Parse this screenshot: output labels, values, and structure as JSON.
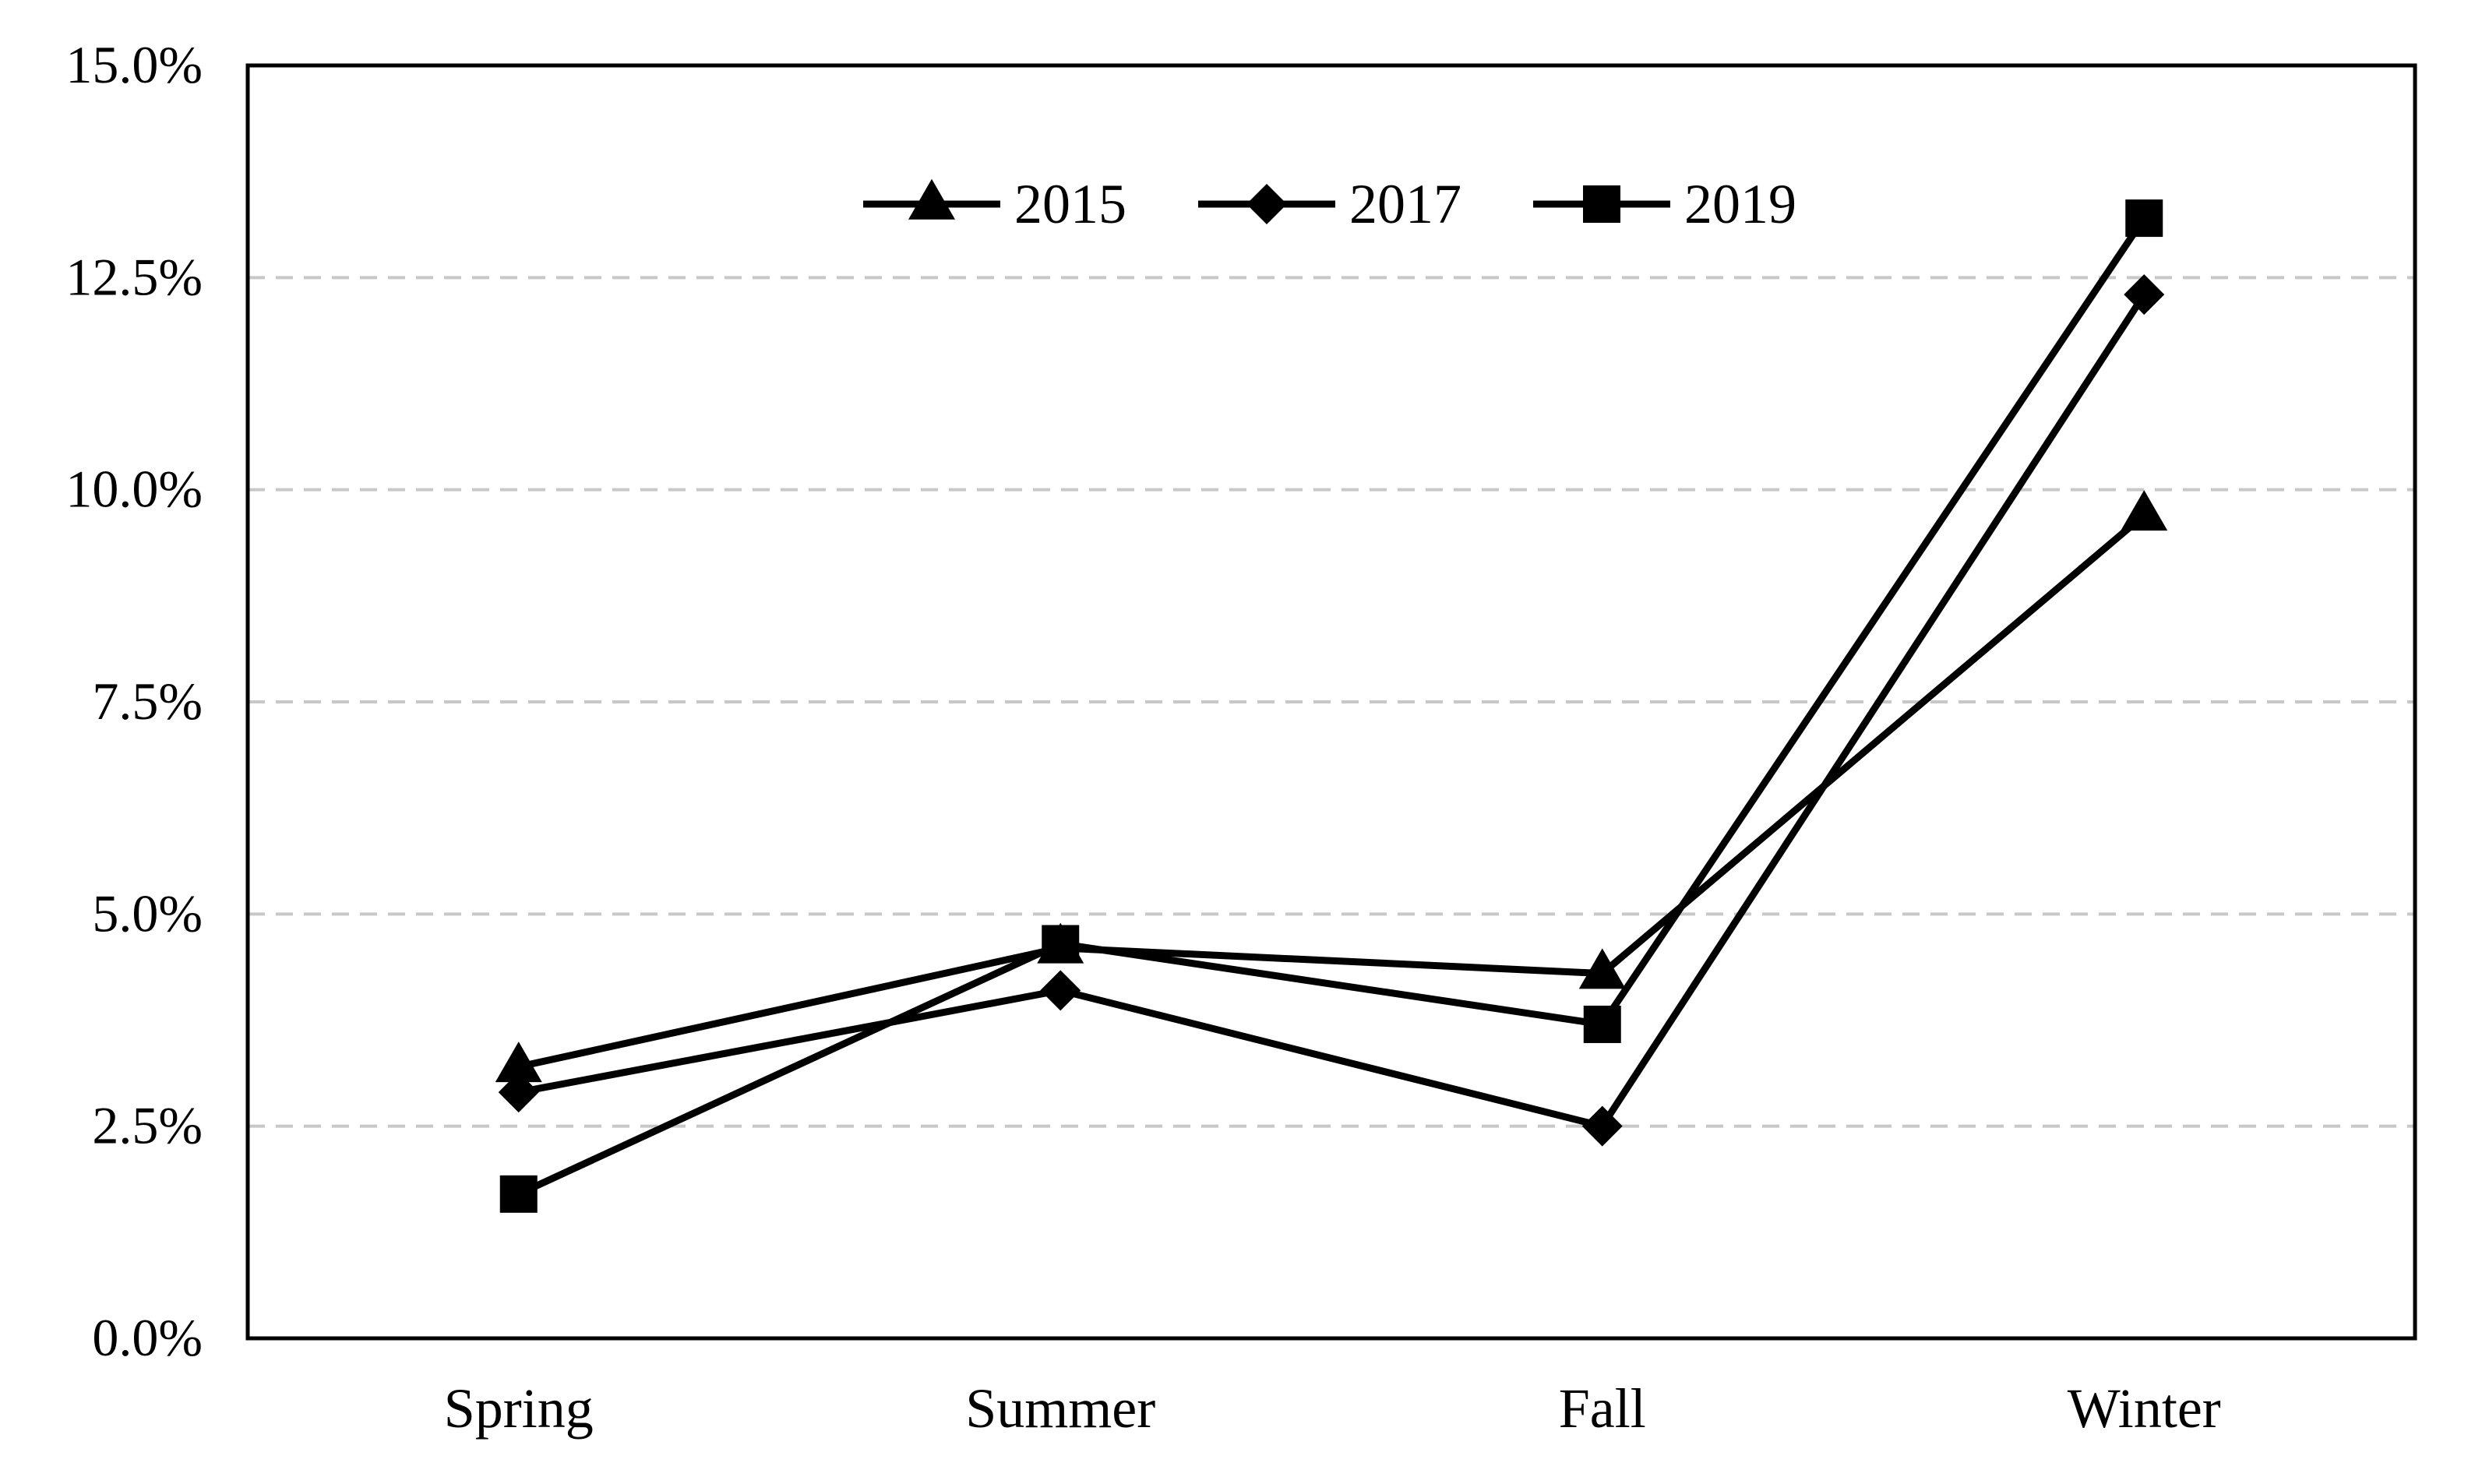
{
  "chart_data": {
    "type": "line",
    "categories": [
      "Spring",
      "Summer",
      "Fall",
      "Winter"
    ],
    "series": [
      {
        "name": "2015",
        "marker": "triangle",
        "values": [
          3.2,
          4.6,
          4.3,
          9.7
        ]
      },
      {
        "name": "2017",
        "marker": "diamond",
        "values": [
          2.9,
          4.1,
          2.5,
          12.3
        ]
      },
      {
        "name": "2019",
        "marker": "square",
        "values": [
          1.7,
          4.65,
          3.7,
          13.2
        ]
      }
    ],
    "ylim": [
      0,
      15
    ],
    "yticks": [
      0,
      2.5,
      5,
      7.5,
      10,
      12.5,
      15
    ],
    "ytick_labels": [
      "0.0%",
      "2.5%",
      "5.0%",
      "7.5%",
      "10.0%",
      "12.5%",
      "15.0%"
    ],
    "title": "",
    "xlabel": "",
    "ylabel": "",
    "grid": "horizontal dashed",
    "legend_position": "top-center",
    "colors": {
      "line": "#000000",
      "grid": "#c8c8c8"
    }
  }
}
